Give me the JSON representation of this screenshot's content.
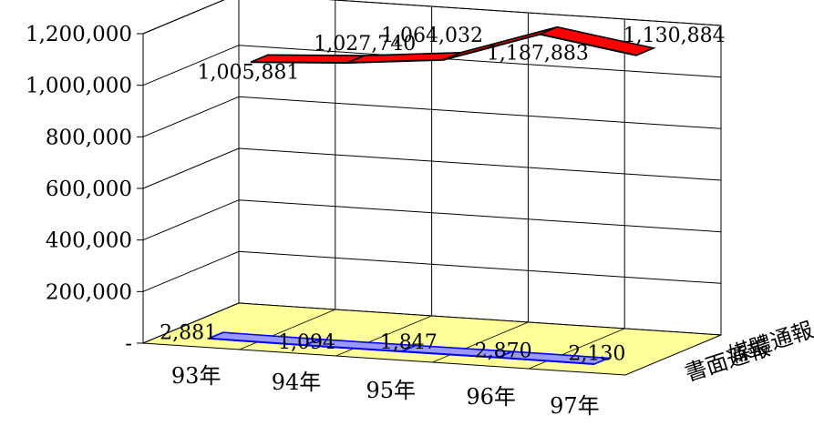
{
  "chart_data": {
    "type": "line",
    "style": "3d-ribbon",
    "categories": [
      "93年",
      "94年",
      "95年",
      "96年",
      "97年"
    ],
    "y_ticks": [
      "-",
      "200,000",
      "400,000",
      "600,000",
      "800,000",
      "1,000,000",
      "1,200,000"
    ],
    "ylim": [
      0,
      1200000
    ],
    "grid": true,
    "series": [
      {
        "name": "書面通報",
        "values": [
          2881,
          1094,
          1847,
          2870,
          2130
        ],
        "labels": [
          "2,881",
          "1,094",
          "1,847",
          "2,870",
          "2,130"
        ],
        "color": "#9999ff"
      },
      {
        "name": "媒體通報",
        "values": [
          1005881,
          1027740,
          1064032,
          1187883,
          1130884
        ],
        "labels": [
          "1,005,881",
          "1,027,740",
          "1,064,032",
          "1,187,883",
          "1,130,884"
        ],
        "color": "#ff0000"
      }
    ],
    "floor_color": "#ffff99"
  }
}
